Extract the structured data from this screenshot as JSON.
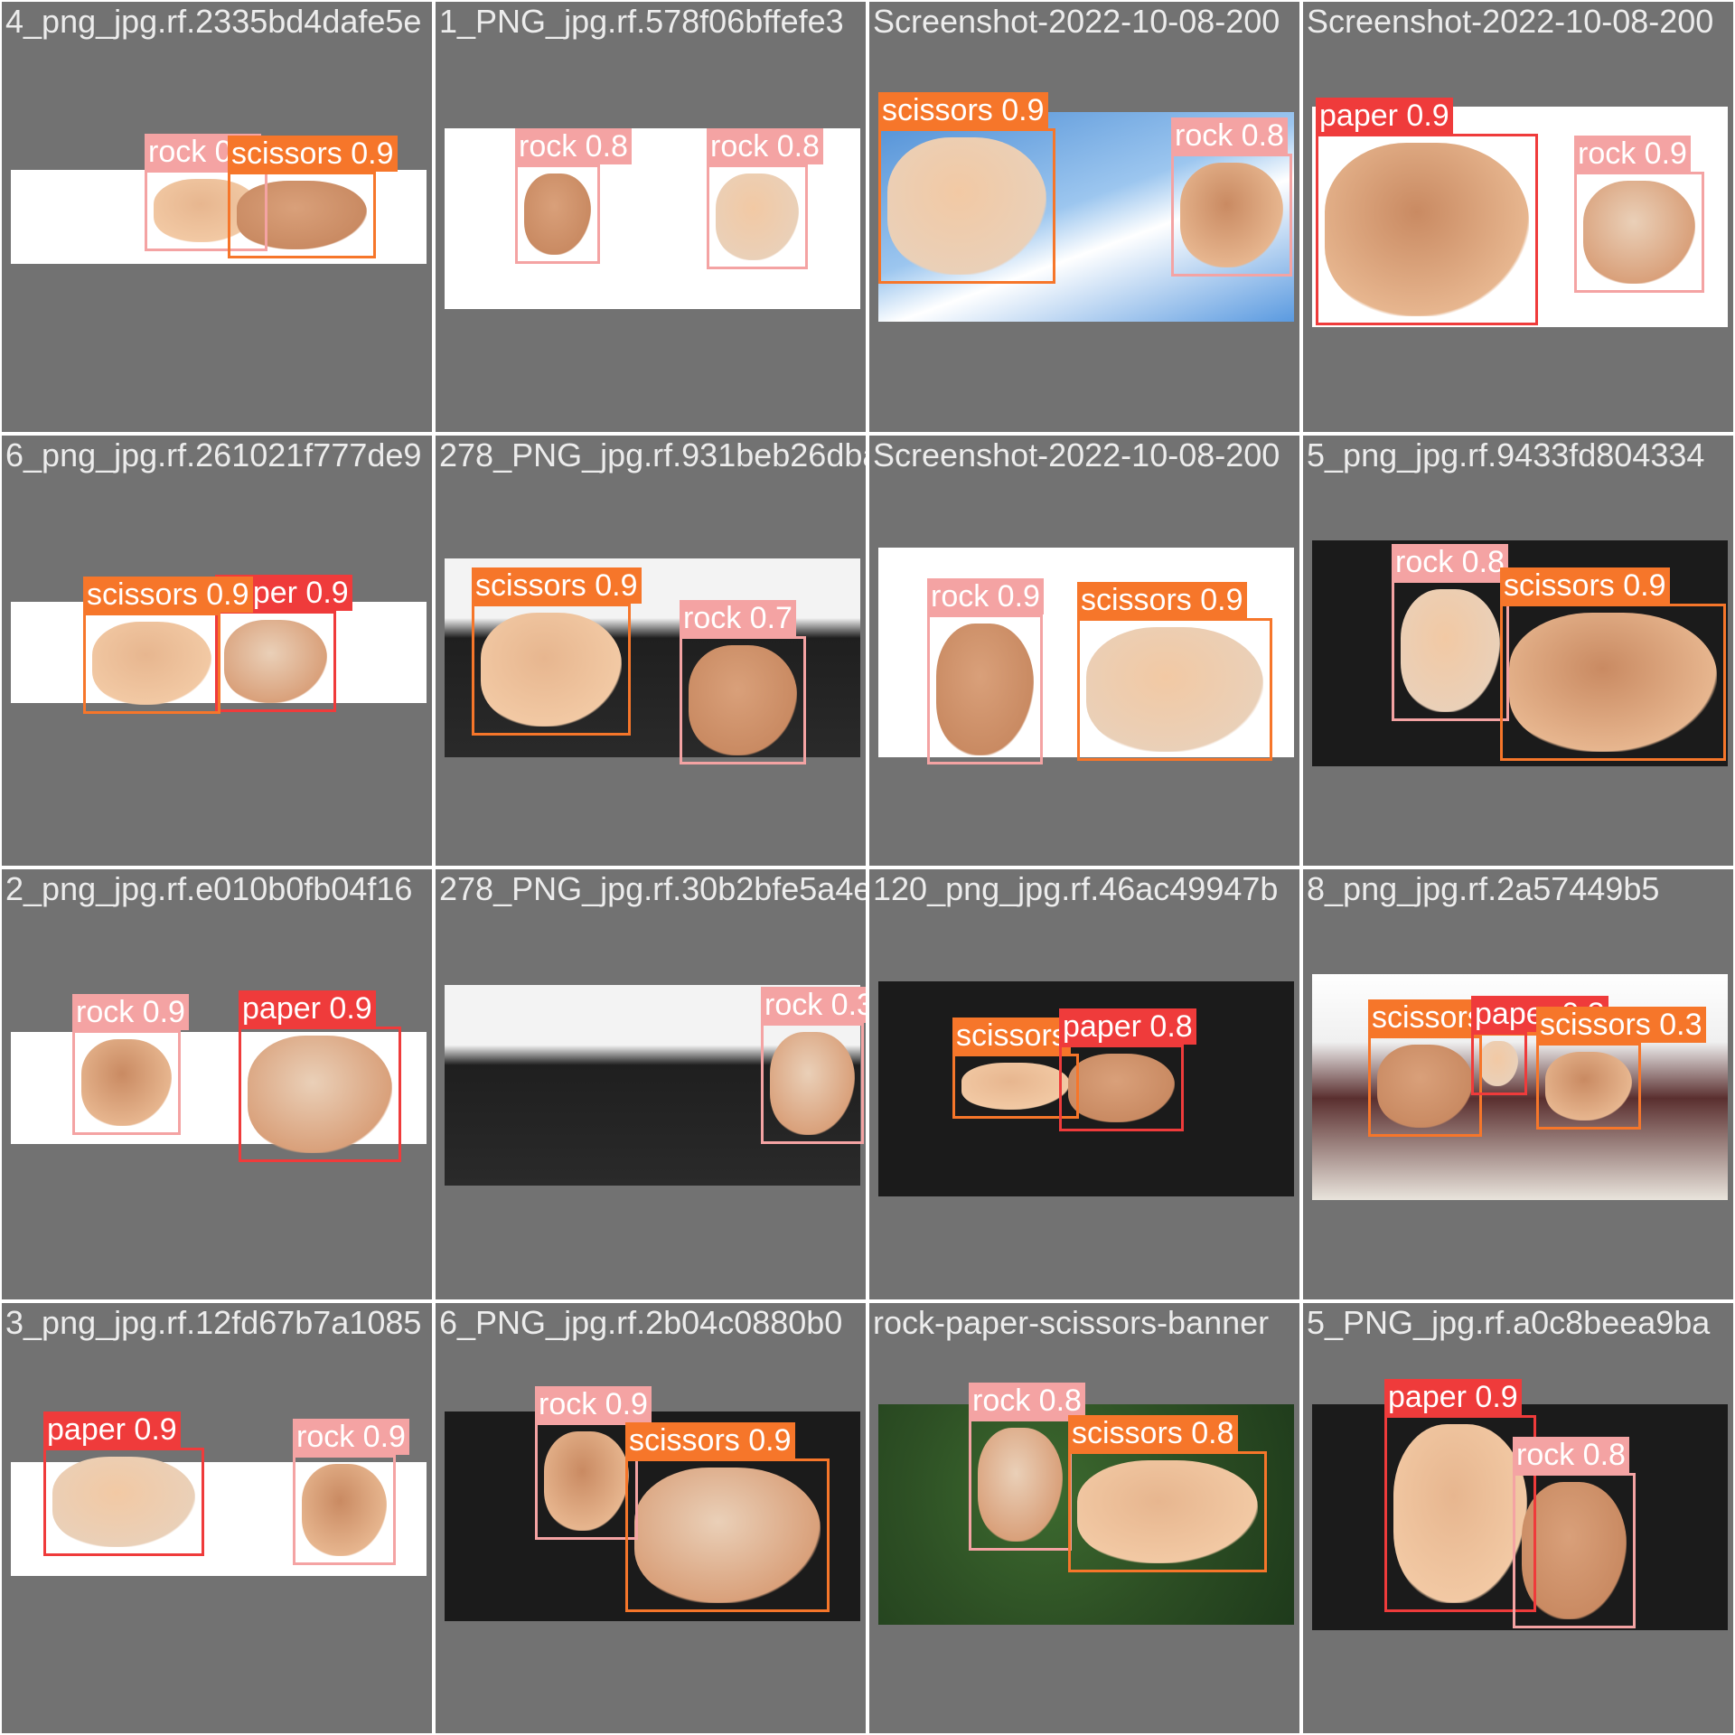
{
  "colors": {
    "rock": "#f4a3a3",
    "paper": "#ef3b3b",
    "scissors": "#f6762a",
    "background": "#727272",
    "filename_text": "#ececec"
  },
  "tiles": [
    {
      "filename": "4_png_jpg.rf.2335bd4dafe5e",
      "scene": "white",
      "detections": [
        {
          "label": "rock 0.9",
          "cls": "rock"
        },
        {
          "label": "scissors 0.9",
          "cls": "scissors"
        }
      ]
    },
    {
      "filename": "1_PNG_jpg.rf.578f06bffefe3",
      "scene": "white",
      "detections": [
        {
          "label": "rock 0.8",
          "cls": "rock"
        },
        {
          "label": "rock 0.8",
          "cls": "rock"
        }
      ]
    },
    {
      "filename": "Screenshot-2022-10-08-200",
      "scene": "sky",
      "detections": [
        {
          "label": "scissors 0.9",
          "cls": "scissors"
        },
        {
          "label": "rock 0.8",
          "cls": "rock"
        }
      ]
    },
    {
      "filename": "Screenshot-2022-10-08-200",
      "scene": "white",
      "detections": [
        {
          "label": "paper 0.9",
          "cls": "paper"
        },
        {
          "label": "rock 0.9",
          "cls": "rock"
        }
      ]
    },
    {
      "filename": "6_png_jpg.rf.261021f777de9",
      "scene": "white",
      "detections": [
        {
          "label": "paper 0.9",
          "cls": "paper"
        },
        {
          "label": "scissors 0.9",
          "cls": "scissors"
        }
      ]
    },
    {
      "filename": "278_PNG_jpg.rf.931beb26dba",
      "scene": "dark",
      "detections": [
        {
          "label": "scissors 0.9",
          "cls": "scissors"
        },
        {
          "label": "rock 0.7",
          "cls": "rock"
        }
      ]
    },
    {
      "filename": "Screenshot-2022-10-08-200",
      "scene": "white",
      "detections": [
        {
          "label": "rock 0.9",
          "cls": "rock"
        },
        {
          "label": "scissors 0.9",
          "cls": "scissors"
        }
      ]
    },
    {
      "filename": "5_png_jpg.rf.9433fd804334",
      "scene": "black",
      "detections": [
        {
          "label": "rock 0.8",
          "cls": "rock"
        },
        {
          "label": "scissors 0.9",
          "cls": "scissors"
        }
      ]
    },
    {
      "filename": "2_png_jpg.rf.e010b0fb04f16",
      "scene": "white",
      "detections": [
        {
          "label": "rock 0.9",
          "cls": "rock"
        },
        {
          "label": "paper 0.9",
          "cls": "paper"
        }
      ]
    },
    {
      "filename": "278_PNG_jpg.rf.30b2bfe5a4e",
      "scene": "dark",
      "detections": [
        {
          "label": "rock 0.3",
          "cls": "rock"
        }
      ]
    },
    {
      "filename": "120_png_jpg.rf.46ac49947b",
      "scene": "black",
      "detections": [
        {
          "label": "scissors",
          "cls": "scissors"
        },
        {
          "label": "paper 0.8",
          "cls": "paper"
        }
      ]
    },
    {
      "filename": "8_png_jpg.rf.2a57449b5",
      "scene": "people",
      "detections": [
        {
          "label": "scissors 0.4",
          "cls": "scissors"
        },
        {
          "label": "paper 0.3",
          "cls": "paper"
        },
        {
          "label": "scissors 0.3",
          "cls": "scissors"
        }
      ]
    },
    {
      "filename": "3_png_jpg.rf.12fd67b7a1085",
      "scene": "white",
      "detections": [
        {
          "label": "paper 0.9",
          "cls": "paper"
        },
        {
          "label": "rock 0.9",
          "cls": "rock"
        }
      ]
    },
    {
      "filename": "6_PNG_jpg.rf.2b04c0880b0",
      "scene": "black",
      "detections": [
        {
          "label": "rock 0.9",
          "cls": "rock"
        },
        {
          "label": "scissors 0.9",
          "cls": "scissors"
        }
      ]
    },
    {
      "filename": "rock-paper-scissors-banner",
      "scene": "green",
      "detections": [
        {
          "label": "rock 0.8",
          "cls": "rock"
        },
        {
          "label": "scissors 0.8",
          "cls": "scissors"
        }
      ]
    },
    {
      "filename": "5_PNG_jpg.rf.a0c8beea9ba",
      "scene": "black",
      "detections": [
        {
          "label": "paper 0.9",
          "cls": "paper"
        },
        {
          "label": "rock 0.8",
          "cls": "rock"
        }
      ]
    }
  ]
}
